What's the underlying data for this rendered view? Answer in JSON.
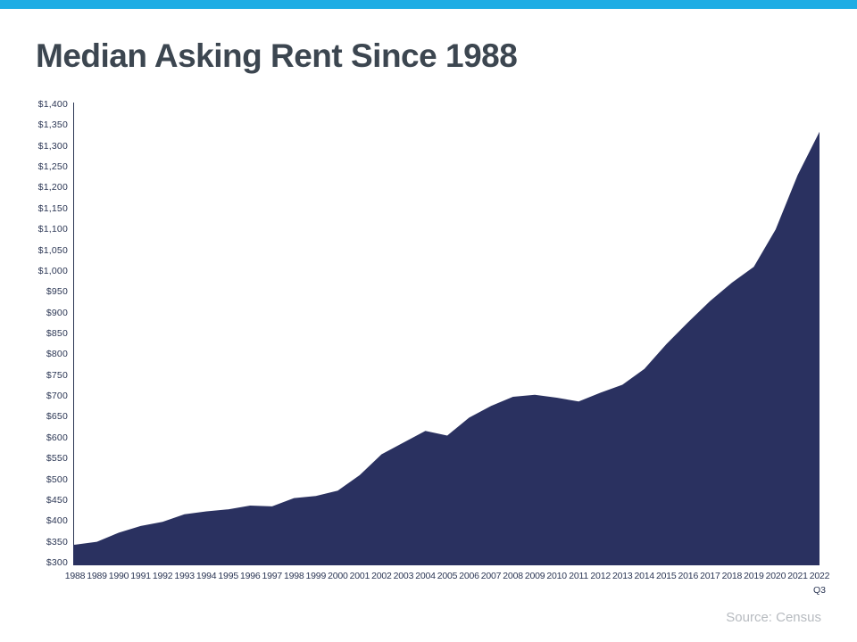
{
  "colors": {
    "background": "#FFFFFF",
    "top_bar": "#1FADE4",
    "title_text": "#3C4650",
    "axis_text": "#2B3654",
    "axis_line": "#2B3654",
    "area_fill": "#2A3160",
    "source_text": "#B7BBC0"
  },
  "chart_data": {
    "type": "area",
    "title": "Median Asking Rent Since 1988",
    "categories": [
      "1988",
      "1989",
      "1990",
      "1991",
      "1992",
      "1993",
      "1994",
      "1995",
      "1996",
      "1997",
      "1998",
      "1999",
      "2000",
      "2001",
      "2002",
      "2003",
      "2004",
      "2005",
      "2006",
      "2007",
      "2008",
      "2009",
      "2010",
      "2011",
      "2012",
      "2013",
      "2014",
      "2015",
      "2016",
      "2017",
      "2018",
      "2019",
      "2020",
      "2021",
      "2022"
    ],
    "values": [
      343,
      350,
      372,
      388,
      398,
      416,
      423,
      428,
      437,
      435,
      455,
      460,
      473,
      510,
      560,
      588,
      616,
      605,
      648,
      676,
      698,
      703,
      696,
      687,
      708,
      727,
      765,
      824,
      877,
      928,
      972,
      1010,
      1100,
      1230,
      1334
    ],
    "y_ticks": [
      "$1,400",
      "$1,350",
      "$1,300",
      "$1,250",
      "$1,200",
      "$1,150",
      "$1,100",
      "$1,050",
      "$1,000",
      "$950",
      "$900",
      "$850",
      "$800",
      "$750",
      "$700",
      "$650",
      "$600",
      "$550",
      "$500",
      "$450",
      "$400",
      "$350",
      "$300"
    ],
    "ylim": [
      300,
      1400
    ],
    "y_tick_step": 50,
    "last_tick_note": "Q3",
    "xlabel": "",
    "ylabel": "",
    "gridlines": false,
    "legend": "none"
  },
  "source": {
    "text": "Source: Census"
  }
}
